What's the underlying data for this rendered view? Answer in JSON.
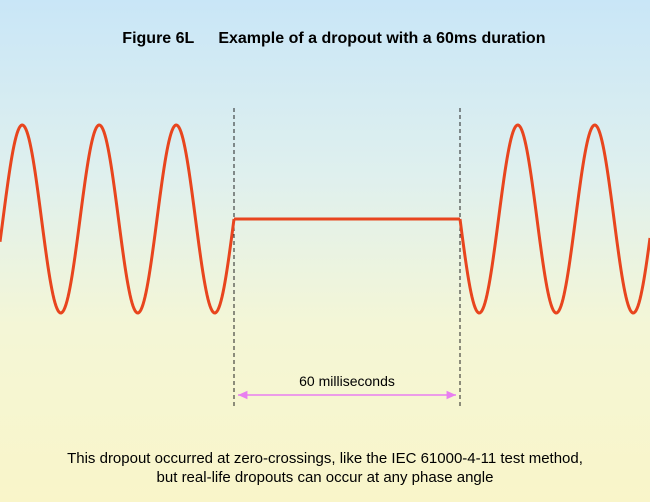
{
  "title": {
    "figure_label": "Figure 6L",
    "text": "Example of a dropout with a 60ms duration"
  },
  "measurement": {
    "label": "60 milliseconds"
  },
  "caption": {
    "line1": "This dropout occurred at zero-crossings, like the IEC 61000-4-11 test method,",
    "line2": "but real-life dropouts can occur at any phase angle"
  },
  "colors": {
    "waveform": "#e8451e",
    "dashed_lines": "#222222",
    "arrow": "#e87ef0"
  }
}
